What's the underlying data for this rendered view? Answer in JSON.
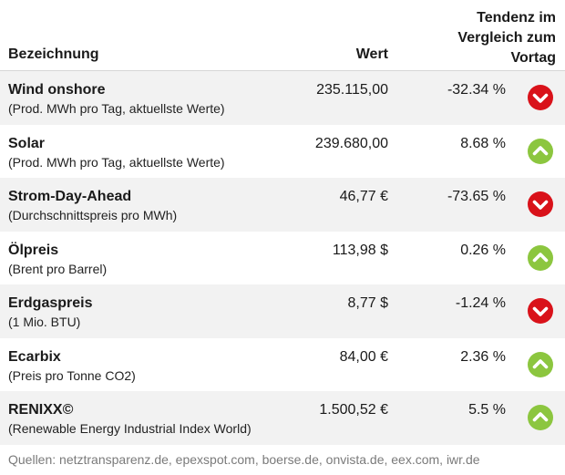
{
  "header": {
    "name_label": "Bezeichnung",
    "value_label": "Wert",
    "trend_line1": "Tendenz im",
    "trend_line2": "Vergleich zum",
    "trend_line3": "Vortag"
  },
  "rows": [
    {
      "name": "Wind onshore",
      "sub": "(Prod. MWh pro Tag, aktuellste Werte)",
      "value": "235.115,00",
      "pct": "-32.34 %",
      "trend_icon": "arrow-down-red-icon"
    },
    {
      "name": "Solar",
      "sub": "(Prod. MWh pro Tag, aktuellste Werte)",
      "value": "239.680,00",
      "pct": "8.68 %",
      "trend_icon": "arrow-up-green-icon"
    },
    {
      "name": "Strom-Day-Ahead",
      "sub": "(Durchschnittspreis pro MWh)",
      "value": "46,77 €",
      "pct": "-73.65 %",
      "trend_icon": "arrow-down-red-icon"
    },
    {
      "name": "Ölpreis",
      "sub": "(Brent pro Barrel)",
      "value": "113,98 $",
      "pct": "0.26 %",
      "trend_icon": "arrow-up-green-icon"
    },
    {
      "name": "Erdgaspreis",
      "sub": "(1 Mio. BTU)",
      "value": "8,77 $",
      "pct": "-1.24 %",
      "trend_icon": "arrow-down-red-icon"
    },
    {
      "name": "Ecarbix",
      "sub": "(Preis pro Tonne CO2)",
      "value": "84,00 €",
      "pct": "2.36 %",
      "trend_icon": "arrow-up-green-icon"
    },
    {
      "name": "RENIXX©",
      "sub": "(Renewable Energy Industrial Index World)",
      "value": "1.500,52 €",
      "pct": "5.5 %",
      "trend_icon": "arrow-up-green-icon"
    }
  ],
  "footer": {
    "sources": "Quellen: netztransparenz.de, epexspot.com, boerse.de, onvista.de, eex.com, iwr.de"
  },
  "colors": {
    "down": "#d9121a",
    "up": "#8cc63f",
    "shade": "#f2f2f2"
  }
}
